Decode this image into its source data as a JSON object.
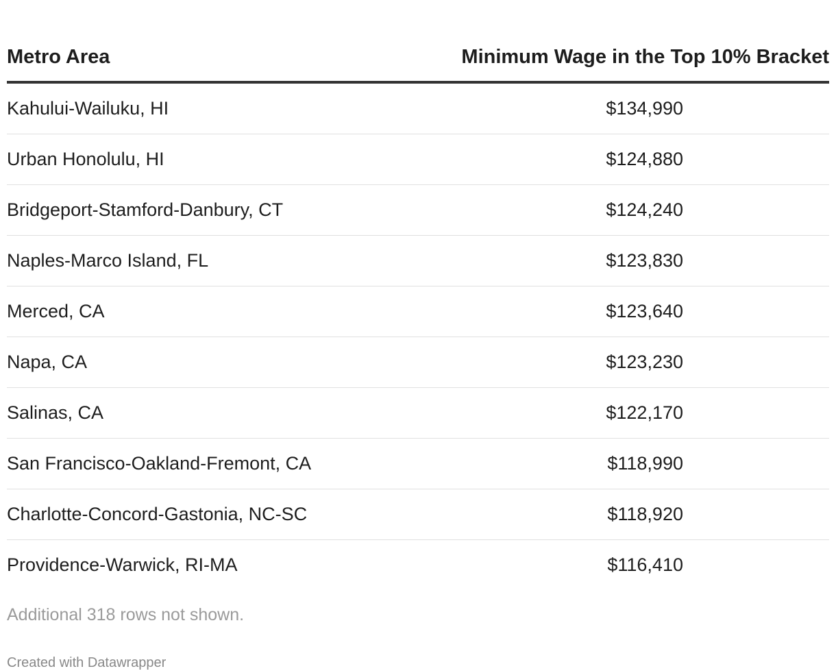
{
  "table": {
    "header": [
      "Metro Area",
      "Minimum Wage in the Top 10% Bracket"
    ],
    "rows": [
      [
        "Kahului-Wailuku, HI",
        "$134,990"
      ],
      [
        "Urban Honolulu, HI",
        "$124,880"
      ],
      [
        "Bridgeport-Stamford-Danbury, CT",
        "$124,240"
      ],
      [
        "Naples-Marco Island, FL",
        "$123,830"
      ],
      [
        "Merced, CA",
        "$123,640"
      ],
      [
        "Napa, CA",
        "$123,230"
      ],
      [
        "Salinas, CA",
        "$122,170"
      ],
      [
        "San Francisco-Oakland-Fremont, CA",
        "$118,990"
      ],
      [
        "Charlotte-Concord-Gastonia, NC-SC",
        "$118,920"
      ],
      [
        "Providence-Warwick, RI-MA",
        "$116,410"
      ]
    ]
  },
  "note": "Additional 318 rows not shown.",
  "credit": "Created with Datawrapper"
}
